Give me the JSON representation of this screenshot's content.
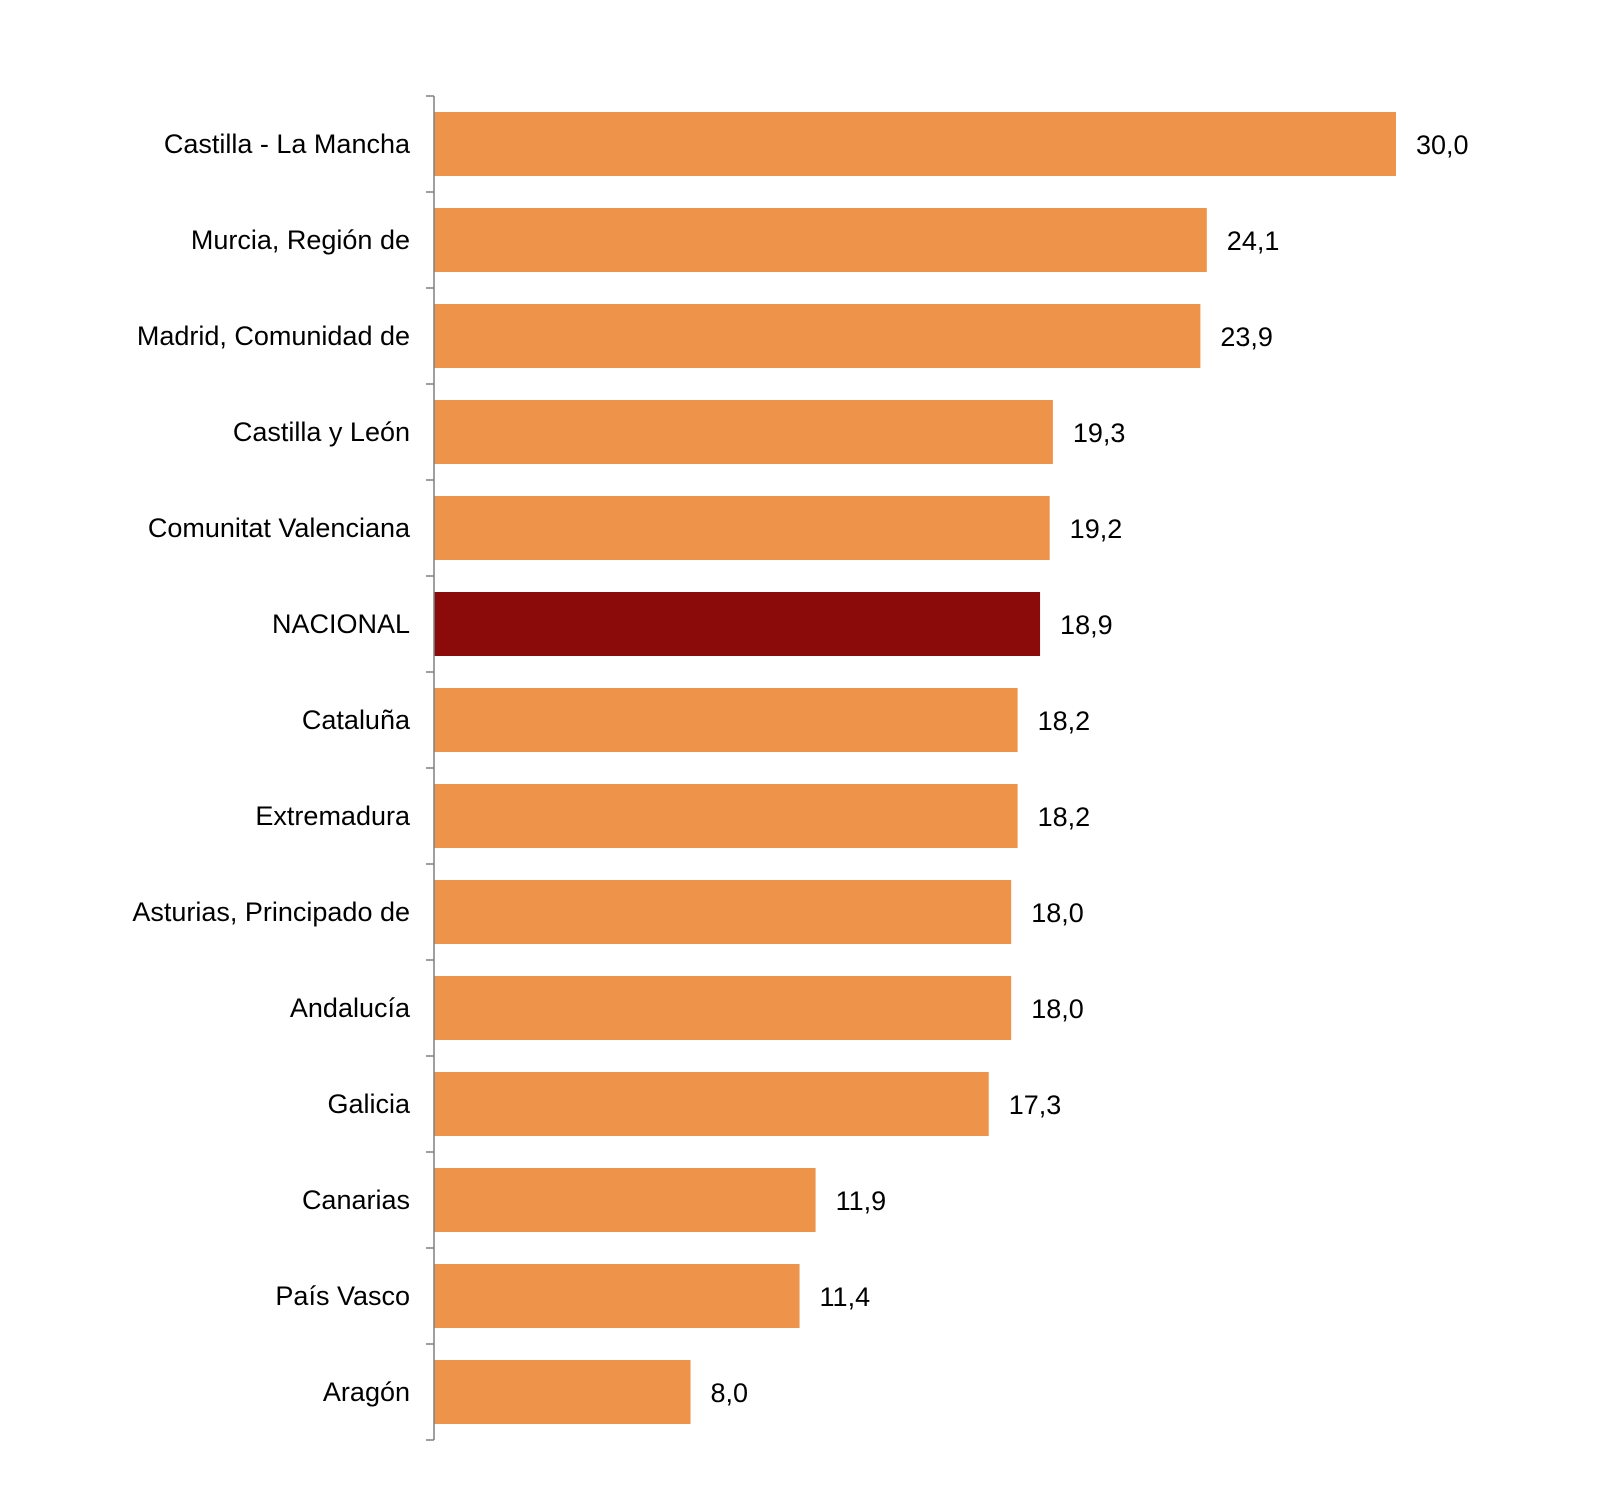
{
  "chart_data": {
    "type": "bar",
    "orientation": "horizontal",
    "categories": [
      "Castilla - La Mancha",
      "Murcia, Región de",
      "Madrid, Comunidad de",
      "Castilla y León",
      "Comunitat Valenciana",
      "NACIONAL",
      "Cataluña",
      "Extremadura",
      "Asturias, Principado de",
      "Andalucía",
      "Galicia",
      "Canarias",
      "País Vasco",
      "Aragón"
    ],
    "values": [
      30.0,
      24.1,
      23.9,
      19.3,
      19.2,
      18.9,
      18.2,
      18.2,
      18.0,
      18.0,
      17.3,
      11.9,
      11.4,
      8.0
    ],
    "value_labels": [
      "30,0",
      "24,1",
      "23,9",
      "19,3",
      "19,2",
      "18,9",
      "18,2",
      "18,2",
      "18,0",
      "18,0",
      "17,3",
      "11,9",
      "11,4",
      "8,0"
    ],
    "title": "",
    "xlabel": "",
    "ylabel": "",
    "xlim": [
      0,
      30
    ],
    "grid": false,
    "legend": "none",
    "highlight_category": "NACIONAL",
    "colors": {
      "bar": "#ED934A",
      "highlight": "#8B0A0A",
      "axis": "#808080",
      "text": "#000000"
    }
  }
}
